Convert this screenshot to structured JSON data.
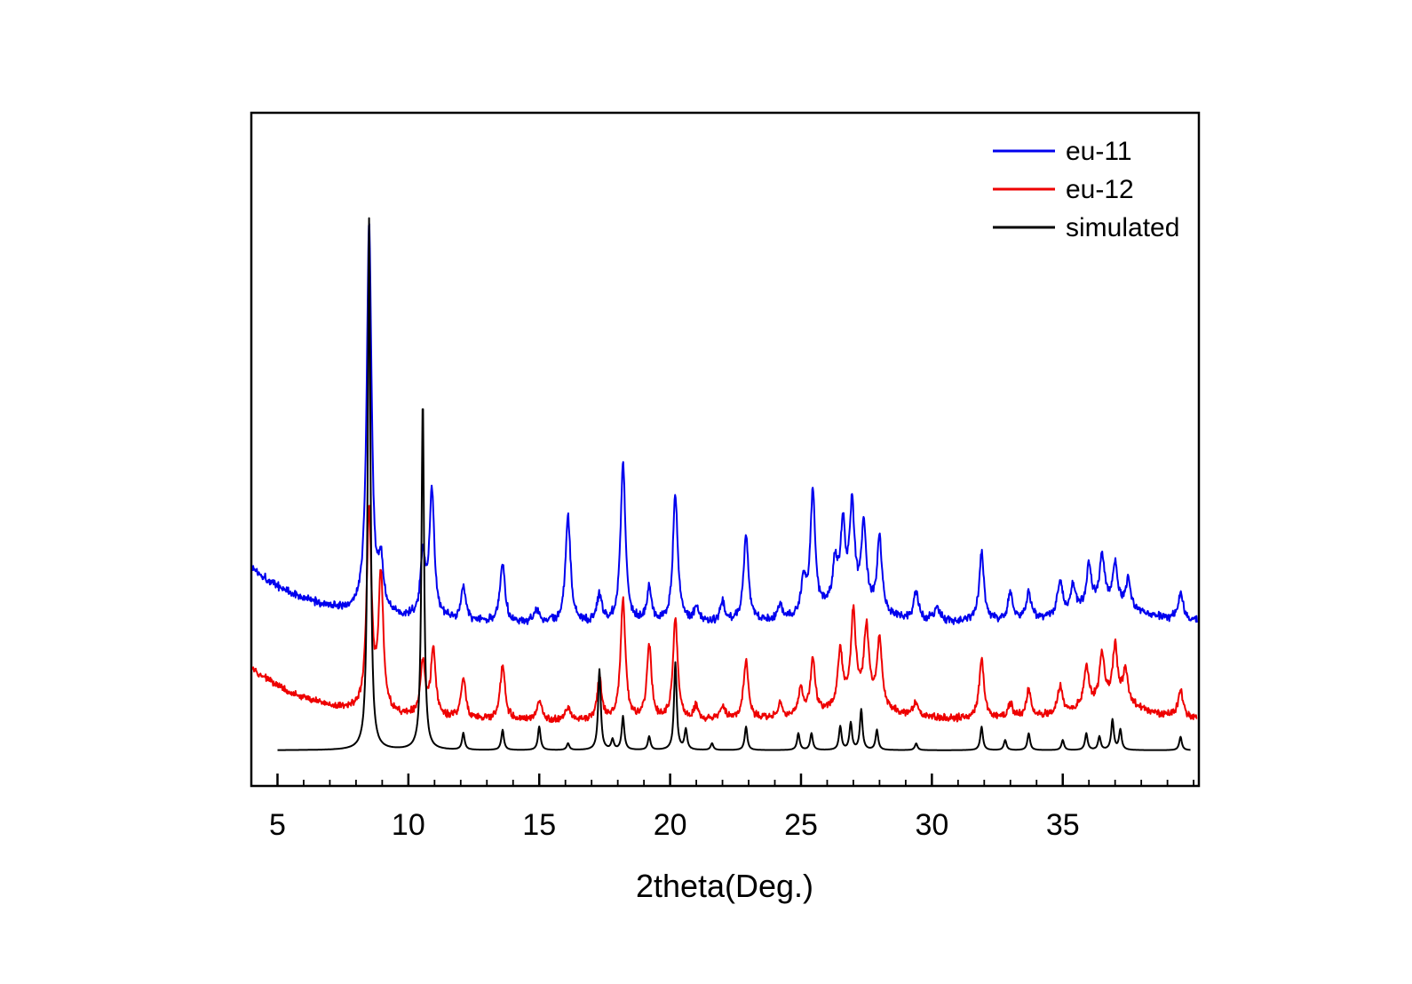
{
  "chart_data": {
    "type": "line",
    "kind": "powder-xrd-pattern",
    "title": "",
    "xlabel": "2theta(Deg.)",
    "ylabel": "",
    "xlim": [
      4.0,
      40.2
    ],
    "ylim": [
      0,
      100
    ],
    "x_ticks": [
      5,
      10,
      15,
      20,
      25,
      30,
      35
    ],
    "minor_tick_step": 1,
    "grid": false,
    "legend_position": "top-right",
    "frame_color": "#000000",
    "series": [
      {
        "name": "eu-11",
        "color": "#0000ee",
        "offset": 24.0,
        "decay": {
          "amp": 8.5,
          "tau": 2.5
        },
        "noise": 0.75,
        "peak_width": 0.11,
        "x_start": 4.05,
        "x_end": 40.15,
        "seed": 1337,
        "peaks": [
          [
            8.5,
            58
          ],
          [
            8.95,
            7
          ],
          [
            10.55,
            9
          ],
          [
            10.9,
            19
          ],
          [
            12.1,
            5
          ],
          [
            13.6,
            9
          ],
          [
            14.9,
            2
          ],
          [
            16.1,
            16
          ],
          [
            17.3,
            4
          ],
          [
            18.2,
            24
          ],
          [
            19.2,
            5
          ],
          [
            20.2,
            19
          ],
          [
            21.0,
            2
          ],
          [
            22.0,
            3
          ],
          [
            22.9,
            13
          ],
          [
            24.2,
            2
          ],
          [
            25.1,
            5
          ],
          [
            25.45,
            18
          ],
          [
            26.3,
            6
          ],
          [
            26.6,
            11
          ],
          [
            26.95,
            14
          ],
          [
            27.4,
            12
          ],
          [
            28.0,
            11
          ],
          [
            29.4,
            4
          ],
          [
            30.2,
            2
          ],
          [
            31.9,
            10
          ],
          [
            33.0,
            4
          ],
          [
            33.7,
            4
          ],
          [
            34.9,
            5
          ],
          [
            35.4,
            4
          ],
          [
            36.0,
            6
          ],
          [
            36.5,
            7
          ],
          [
            37.0,
            6
          ],
          [
            37.5,
            4
          ],
          [
            39.5,
            4
          ],
          [
            26.8,
            3,
            1.2
          ],
          [
            36.7,
            3,
            1.5
          ]
        ]
      },
      {
        "name": "eu-12",
        "color": "#ee0000",
        "offset": 9.5,
        "decay": {
          "amp": 8.0,
          "tau": 2.5
        },
        "noise": 0.65,
        "peak_width": 0.11,
        "x_start": 4.05,
        "x_end": 40.15,
        "seed": 4242,
        "peaks": [
          [
            8.5,
            30
          ],
          [
            8.95,
            20
          ],
          [
            10.55,
            8
          ],
          [
            10.95,
            10
          ],
          [
            12.1,
            6
          ],
          [
            13.6,
            8
          ],
          [
            15.0,
            3
          ],
          [
            16.1,
            2
          ],
          [
            17.3,
            6
          ],
          [
            18.2,
            18
          ],
          [
            19.2,
            11
          ],
          [
            20.2,
            15
          ],
          [
            21.0,
            2
          ],
          [
            22.0,
            2
          ],
          [
            22.9,
            9
          ],
          [
            24.2,
            2
          ],
          [
            25.0,
            4
          ],
          [
            25.45,
            8
          ],
          [
            26.5,
            8
          ],
          [
            27.0,
            13
          ],
          [
            27.5,
            11
          ],
          [
            28.0,
            10
          ],
          [
            29.4,
            2
          ],
          [
            31.9,
            9
          ],
          [
            33.0,
            2
          ],
          [
            33.7,
            4
          ],
          [
            34.9,
            4
          ],
          [
            35.9,
            6
          ],
          [
            36.5,
            7
          ],
          [
            37.0,
            8
          ],
          [
            37.4,
            5
          ],
          [
            39.5,
            4
          ],
          [
            27.2,
            3,
            1.2
          ],
          [
            36.8,
            3,
            1.5
          ]
        ]
      },
      {
        "name": "simulated",
        "color": "#000000",
        "offset": 5.3,
        "decay": null,
        "noise": 0,
        "peak_width": 0.06,
        "x_start": 5.0,
        "x_end": 39.9,
        "seed": 7,
        "peaks": [
          [
            8.5,
            79
          ],
          [
            10.55,
            52
          ],
          [
            12.1,
            2.5
          ],
          [
            13.6,
            3
          ],
          [
            15.0,
            3.5
          ],
          [
            16.1,
            1
          ],
          [
            17.3,
            12
          ],
          [
            17.8,
            1.5
          ],
          [
            18.2,
            5
          ],
          [
            19.2,
            2
          ],
          [
            20.2,
            13
          ],
          [
            20.6,
            3
          ],
          [
            21.6,
            1
          ],
          [
            22.9,
            3.5
          ],
          [
            24.9,
            2.5
          ],
          [
            25.4,
            2.5
          ],
          [
            26.5,
            3.5
          ],
          [
            26.9,
            4
          ],
          [
            27.3,
            6
          ],
          [
            27.9,
            3
          ],
          [
            29.4,
            1
          ],
          [
            31.9,
            3.5
          ],
          [
            32.8,
            1.5
          ],
          [
            33.7,
            2.5
          ],
          [
            35.0,
            1.5
          ],
          [
            35.9,
            2.5
          ],
          [
            36.4,
            2
          ],
          [
            36.9,
            4.5
          ],
          [
            37.2,
            3
          ],
          [
            39.5,
            2
          ]
        ]
      }
    ]
  }
}
